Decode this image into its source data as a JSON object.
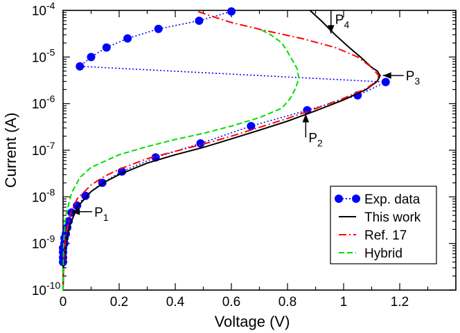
{
  "chart_data": {
    "type": "line",
    "xlabel": "Voltage (V)",
    "ylabel": "Current (A)",
    "xlim": [
      0,
      1.4
    ],
    "ylim": [
      1e-10,
      0.0001
    ],
    "yscale": "log",
    "x_ticks": [
      0,
      0.2,
      0.4,
      0.6,
      0.8,
      1,
      1.2
    ],
    "x_tick_labels": [
      "0",
      "0.2",
      "0.4",
      "0.6",
      "0.8",
      "1",
      "1.2"
    ],
    "y_ticks": [
      {
        "value": 1e-10,
        "base": "10",
        "exp": "-10"
      },
      {
        "value": 1e-09,
        "base": "10",
        "exp": "-9"
      },
      {
        "value": 1e-08,
        "base": "10",
        "exp": "-8"
      },
      {
        "value": 1e-07,
        "base": "10",
        "exp": "-7"
      },
      {
        "value": 1e-06,
        "base": "10",
        "exp": "-6"
      },
      {
        "value": 1e-05,
        "base": "10",
        "exp": "-5"
      },
      {
        "value": 0.0001,
        "base": "10",
        "exp": "-4"
      }
    ],
    "legend_position": "bottom-right",
    "series": [
      {
        "name": "Exp. data",
        "style": "dotted-markers",
        "color": "#0000ff",
        "points": [
          [
            0.0,
            4e-10
          ],
          [
            0.0,
            5e-10
          ],
          [
            0.0,
            6.5e-10
          ],
          [
            0.0,
            8e-10
          ],
          [
            0.005,
            1e-09
          ],
          [
            0.005,
            1.3e-09
          ],
          [
            0.01,
            1.6e-09
          ],
          [
            0.015,
            2.2e-09
          ],
          [
            0.02,
            3e-09
          ],
          [
            0.03,
            4.6e-09
          ],
          [
            0.05,
            6.5e-09
          ],
          [
            0.08,
            1.05e-08
          ],
          [
            0.14,
            2e-08
          ],
          [
            0.21,
            3.5e-08
          ],
          [
            0.33,
            7e-08
          ],
          [
            0.49,
            1.4e-07
          ],
          [
            0.67,
            3.3e-07
          ],
          [
            0.87,
            7.2e-07
          ],
          [
            1.05,
            1.5e-06
          ],
          [
            1.15,
            2.9e-06
          ],
          [
            0.06,
            6.3e-06
          ],
          [
            0.1,
            1e-05
          ],
          [
            0.155,
            1.6e-05
          ],
          [
            0.23,
            2.5e-05
          ],
          [
            0.34,
            4e-05
          ],
          [
            0.485,
            6e-05
          ],
          [
            0.6,
            9.5e-05
          ]
        ]
      },
      {
        "name": "This work",
        "style": "solid",
        "color": "#000000",
        "points": [
          [
            0.0,
            1e-10
          ],
          [
            0.002,
            3e-10
          ],
          [
            0.01,
            1e-09
          ],
          [
            0.025,
            2.5e-09
          ],
          [
            0.05,
            6e-09
          ],
          [
            0.1,
            1.3e-08
          ],
          [
            0.15,
            2.1e-08
          ],
          [
            0.2,
            3e-08
          ],
          [
            0.3,
            5.3e-08
          ],
          [
            0.4,
            8e-08
          ],
          [
            0.5,
            1.15e-07
          ],
          [
            0.6,
            1.75e-07
          ],
          [
            0.7,
            2.7e-07
          ],
          [
            0.8,
            4.2e-07
          ],
          [
            0.9,
            7e-07
          ],
          [
            1.0,
            1.2e-06
          ],
          [
            1.08,
            2e-06
          ],
          [
            1.12,
            3e-06
          ],
          [
            1.13,
            4e-06
          ],
          [
            1.12,
            5e-06
          ],
          [
            1.1,
            6e-06
          ],
          [
            1.06,
            1e-05
          ],
          [
            1.02,
            1.6e-05
          ],
          [
            0.97,
            3e-05
          ],
          [
            0.92,
            6e-05
          ],
          [
            0.88,
            0.0001
          ]
        ]
      },
      {
        "name": "Ref. 17",
        "style": "dash-dot",
        "color": "#ff0000",
        "points": [
          [
            0.0,
            1e-10
          ],
          [
            0.002,
            4e-10
          ],
          [
            0.01,
            1.5e-09
          ],
          [
            0.025,
            4e-09
          ],
          [
            0.05,
            9e-09
          ],
          [
            0.1,
            1.8e-08
          ],
          [
            0.15,
            2.8e-08
          ],
          [
            0.2,
            3.9e-08
          ],
          [
            0.3,
            6.6e-08
          ],
          [
            0.4,
            9.5e-08
          ],
          [
            0.5,
            1.35e-07
          ],
          [
            0.6,
            2e-07
          ],
          [
            0.7,
            3.1e-07
          ],
          [
            0.8,
            4.8e-07
          ],
          [
            0.9,
            7.8e-07
          ],
          [
            1.0,
            1.3e-06
          ],
          [
            1.08,
            2.1e-06
          ],
          [
            1.12,
            3.1e-06
          ],
          [
            1.125,
            4e-06
          ],
          [
            1.1,
            6e-06
          ],
          [
            1.05,
            1e-05
          ],
          [
            0.97,
            1.6e-05
          ],
          [
            0.85,
            2.5e-05
          ],
          [
            0.72,
            3.7e-05
          ],
          [
            0.6,
            5.5e-05
          ],
          [
            0.53,
            7.5e-05
          ],
          [
            0.48,
            9.5e-05
          ]
        ]
      },
      {
        "name": "Hybrid",
        "style": "dashed",
        "color": "#00dd00",
        "points": [
          [
            0.0,
            1e-10
          ],
          [
            0.002,
            1e-09
          ],
          [
            0.01,
            4e-09
          ],
          [
            0.03,
            1.2e-08
          ],
          [
            0.06,
            2.6e-08
          ],
          [
            0.1,
            4.3e-08
          ],
          [
            0.2,
            8e-08
          ],
          [
            0.3,
            1.2e-07
          ],
          [
            0.4,
            1.7e-07
          ],
          [
            0.5,
            2.3e-07
          ],
          [
            0.6,
            3.3e-07
          ],
          [
            0.7,
            5e-07
          ],
          [
            0.78,
            8e-07
          ],
          [
            0.81,
            1.3e-06
          ],
          [
            0.83,
            2.2e-06
          ],
          [
            0.84,
            3.5e-06
          ],
          [
            0.835,
            5.5e-06
          ],
          [
            0.82,
            8e-06
          ],
          [
            0.8,
            1.3e-05
          ],
          [
            0.78,
            2e-05
          ],
          [
            0.74,
            3e-05
          ],
          [
            0.7,
            4e-05
          ]
        ]
      }
    ],
    "annotations": [
      {
        "name": "P1",
        "label": "P",
        "sub": "1",
        "x": 0.03,
        "y": 4.8e-09,
        "direction": "left"
      },
      {
        "name": "P2",
        "label": "P",
        "sub": "2",
        "x": 0.865,
        "y": 6e-07,
        "direction": "up"
      },
      {
        "name": "P3",
        "label": "P",
        "sub": "3",
        "x": 1.14,
        "y": 4e-06,
        "direction": "left"
      },
      {
        "name": "P4",
        "label": "P",
        "sub": "4",
        "x": 0.955,
        "y": 3.2e-05,
        "direction": "down"
      }
    ]
  },
  "legend": {
    "items": [
      {
        "label": "Exp. data",
        "style": "dotted-markers",
        "color": "#0000ff"
      },
      {
        "label": "This work",
        "style": "solid",
        "color": "#000000"
      },
      {
        "label": "Ref. 17",
        "style": "dash-dot",
        "color": "#ff0000"
      },
      {
        "label": "Hybrid",
        "style": "dashed",
        "color": "#00dd00"
      }
    ]
  }
}
